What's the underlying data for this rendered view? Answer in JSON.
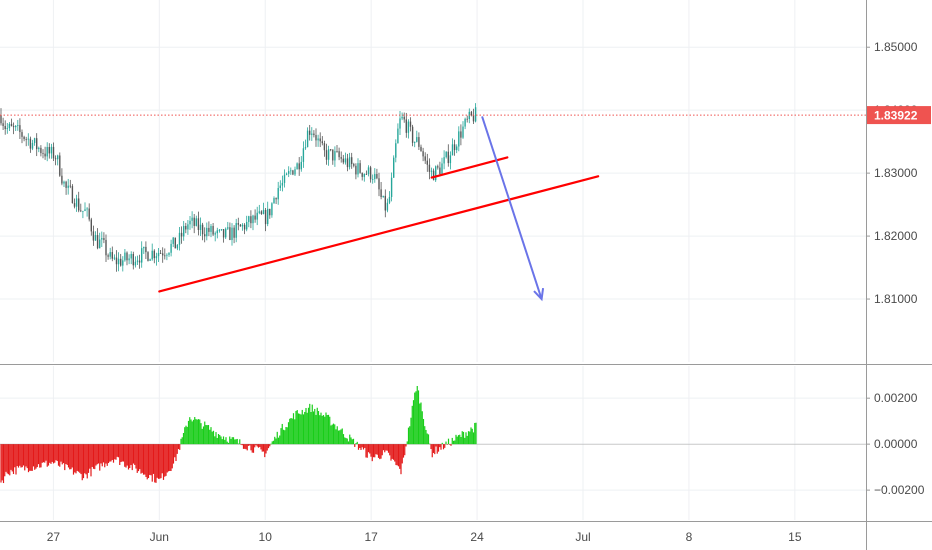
{
  "chart_data": [
    {
      "type": "candlestick",
      "panel": "price",
      "title": "",
      "x": [
        "May 22",
        "May 23",
        "May 24",
        "May 27",
        "May 28",
        "May 29",
        "May 30",
        "May 31",
        "Jun 3",
        "Jun 4",
        "Jun 5",
        "Jun 6",
        "Jun 7",
        "Jun 10",
        "Jun 11",
        "Jun 12",
        "Jun 13",
        "Jun 14",
        "Jun 17",
        "Jun 18",
        "Jun 19",
        "Jun 20",
        "Jun 21",
        "Jun 24"
      ],
      "close": [
        1.8455,
        1.842,
        1.837,
        1.833,
        1.827,
        1.824,
        1.819,
        1.816,
        1.8175,
        1.8185,
        1.822,
        1.821,
        1.82,
        1.823,
        1.828,
        1.831,
        1.837,
        1.833,
        1.83,
        1.8245,
        1.8385,
        1.835,
        1.83,
        1.8392
      ],
      "ylim": [
        1.8,
        1.8575
      ],
      "yticks": [
        1.81,
        1.82,
        1.83,
        1.84,
        1.85
      ],
      "ytick_labels": [
        "1.81000",
        "1.82000",
        "1.83000",
        "1.84000",
        "1.85000"
      ],
      "xticks": [
        "27",
        "Jun",
        "10",
        "17",
        "24",
        "Jul",
        "8",
        "15"
      ],
      "last_price": 1.83922,
      "last_price_label": "1.83922",
      "last_price_color": "#ef5350",
      "candle_up_color": "#26a69a",
      "candle_down_color": "#555555",
      "trendlines": [
        {
          "from": [
            "Jun 3",
            1.8112
          ],
          "to": [
            "Jul 2",
            1.8295
          ],
          "color": "#ff0000"
        },
        {
          "from": [
            "Jun 21",
            1.8293
          ],
          "to": [
            "Jun 26",
            1.8325
          ],
          "color": "#ff0000"
        }
      ],
      "arrow": {
        "from": [
          "Jun 24",
          1.839
        ],
        "to": [
          "Jun 28",
          1.81
        ],
        "color": "#6a74e8"
      },
      "grid": true
    },
    {
      "type": "histogram",
      "panel": "oscillator",
      "title": "",
      "x": [
        "May 22",
        "May 23",
        "May 24",
        "May 27",
        "May 28",
        "May 29",
        "May 30",
        "May 31",
        "Jun 3",
        "Jun 4",
        "Jun 5",
        "Jun 6",
        "Jun 7",
        "Jun 10",
        "Jun 11",
        "Jun 12",
        "Jun 13",
        "Jun 14",
        "Jun 17",
        "Jun 18",
        "Jun 19",
        "Jun 20",
        "Jun 21",
        "Jun 24"
      ],
      "values": [
        0.0005,
        -0.0022,
        -0.0012,
        -0.0008,
        -0.0011,
        -0.0014,
        -0.001,
        -0.0006,
        -0.0016,
        -0.0008,
        0.0012,
        0.0008,
        0.0004,
        -0.0004,
        0.0006,
        0.0013,
        0.0016,
        0.0012,
        -0.0006,
        -0.0004,
        -0.0012,
        0.0026,
        -0.0004,
        0.0008
      ],
      "ylim": [
        -0.0033,
        0.0034
      ],
      "yticks": [
        -0.002,
        0.0,
        0.002
      ],
      "ytick_labels": [
        "−0.00200",
        "0.00000",
        "0.00200"
      ],
      "positive_color": "#00c800",
      "negative_color": "#e00000",
      "grid": true
    }
  ]
}
